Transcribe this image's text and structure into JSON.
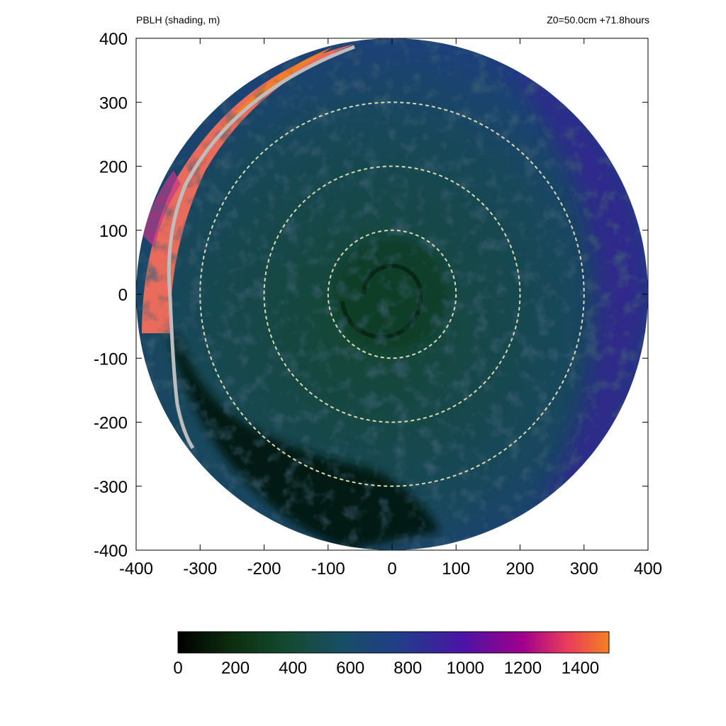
{
  "header": {
    "title": "PBLH (shading, m)",
    "run_info": "Z0=50.0cm  +71.8hours"
  },
  "chart_data": {
    "type": "heatmap",
    "title": "PBLH (shading, m)",
    "annotation": "Z0=50.0cm  +71.8hours",
    "xlim": [
      -400,
      400
    ],
    "ylim": [
      -400,
      400
    ],
    "x_ticks": [
      -400,
      -300,
      -200,
      -100,
      0,
      100,
      200,
      300,
      400
    ],
    "y_ticks": [
      -400,
      -300,
      -200,
      -100,
      0,
      100,
      200,
      300,
      400
    ],
    "x_tick_labels": [
      "-400",
      "-300",
      "-200",
      "-100",
      "0",
      "100",
      "200",
      "300",
      "400"
    ],
    "y_tick_labels": [
      "-400",
      "-300",
      "-200",
      "-100",
      "0",
      "100",
      "200",
      "300",
      "400"
    ],
    "domain_shape": "circle",
    "domain_radius": 400,
    "range_rings": {
      "radii": [
        100,
        200,
        300
      ],
      "style": "dashed",
      "color": "#d9d9b0"
    },
    "colorbar": {
      "orientation": "horizontal",
      "range": [
        0,
        1500
      ],
      "ticks": [
        0,
        200,
        400,
        600,
        800,
        1000,
        1200,
        1400
      ],
      "tick_labels": [
        "0",
        "200",
        "400",
        "600",
        "800",
        "1000",
        "1200",
        "1400"
      ],
      "colormap": [
        "#000000",
        "#0d2d0f",
        "#134a2f",
        "#184e64",
        "#213c8a",
        "#4a14a6",
        "#a0008c",
        "#e83a5c",
        "#f58022"
      ]
    },
    "regions": [
      {
        "description": "deep PBL band on western edge",
        "value_range": [
          1100,
          1500
        ]
      },
      {
        "description": "shallow PBL in southwest sector",
        "value_range": [
          0,
          300
        ]
      },
      {
        "description": "vortex core near center",
        "value_range": [
          200,
          500
        ]
      },
      {
        "description": "outer eastern region",
        "value_range": [
          700,
          1000
        ]
      }
    ]
  }
}
